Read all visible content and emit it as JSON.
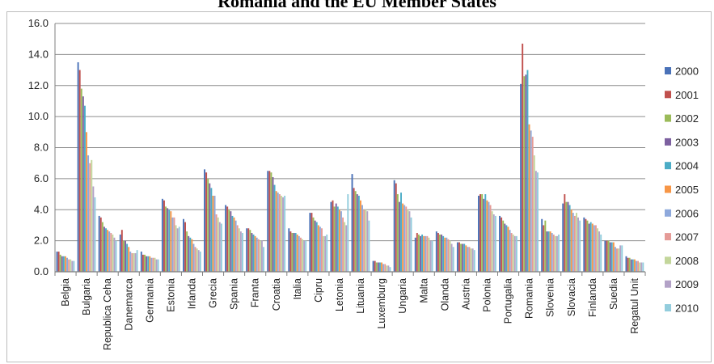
{
  "chart_data": {
    "type": "bar",
    "title": "Romania and the EU Member States",
    "xlabel": "",
    "ylabel": "",
    "ylim": [
      0,
      16
    ],
    "yticks": [
      "0.0",
      "2.0",
      "4.0",
      "6.0",
      "8.0",
      "10.0",
      "12.0",
      "14.0",
      "16.0"
    ],
    "grid": true,
    "legend_position": "right",
    "categories": [
      "Belgia",
      "Bulgaria",
      "Republica Ceha",
      "Danemarca",
      "Germania",
      "Estonia",
      "Irlanda",
      "Grecia",
      "Spania",
      "Franta",
      "Croatia",
      "Italia",
      "Cipru",
      "Letonia",
      "Lituania",
      "Luxemburg",
      "Ungaria",
      "Malta",
      "Olanda",
      "Austria",
      "Polonia",
      "Portugalia",
      "Romania",
      "Slovenia",
      "Slovacia",
      "Finlanda",
      "Suedia",
      "Regatul Unit"
    ],
    "series": [
      {
        "name": "2000",
        "color": "#4a72b8",
        "values": [
          1.3,
          13.5,
          3.6,
          2.4,
          1.3,
          4.7,
          3.4,
          6.6,
          4.3,
          2.8,
          6.5,
          2.8,
          3.8,
          4.5,
          6.3,
          0.7,
          5.9,
          2.2,
          2.6,
          1.9,
          4.9,
          3.6,
          12.1,
          3.4,
          4.4,
          3.5,
          2.0,
          1.0
        ]
      },
      {
        "name": "2001",
        "color": "#c0504d",
        "values": [
          1.3,
          13.0,
          3.5,
          2.7,
          1.1,
          4.6,
          3.2,
          6.4,
          4.2,
          2.8,
          6.5,
          2.6,
          3.8,
          4.6,
          5.4,
          0.7,
          5.7,
          2.5,
          2.5,
          1.9,
          5.0,
          3.5,
          14.7,
          3.0,
          5.0,
          3.4,
          2.0,
          0.9
        ]
      },
      {
        "name": "2002",
        "color": "#9bbb59",
        "values": [
          1.1,
          11.8,
          3.2,
          2.0,
          1.1,
          4.2,
          2.6,
          6.0,
          4.0,
          2.7,
          6.4,
          2.5,
          3.5,
          4.2,
          5.2,
          0.6,
          5.0,
          2.4,
          2.4,
          1.8,
          5.0,
          3.3,
          12.6,
          3.3,
          4.5,
          3.3,
          2.0,
          0.9
        ]
      },
      {
        "name": "2003",
        "color": "#7d60a0",
        "values": [
          1.0,
          11.3,
          2.9,
          2.0,
          1.0,
          4.1,
          2.3,
          5.7,
          3.9,
          2.5,
          6.1,
          2.5,
          3.3,
          4.4,
          5.0,
          0.6,
          4.5,
          2.3,
          2.4,
          1.8,
          4.7,
          3.1,
          12.7,
          2.6,
          4.5,
          3.1,
          1.9,
          0.8
        ]
      },
      {
        "name": "2004",
        "color": "#4bacc6",
        "values": [
          1.0,
          10.7,
          2.8,
          1.8,
          1.0,
          4.0,
          2.2,
          5.4,
          3.6,
          2.4,
          5.6,
          2.5,
          3.2,
          4.2,
          4.9,
          0.6,
          5.1,
          2.4,
          2.3,
          1.8,
          5.0,
          3.0,
          13.0,
          2.6,
          4.3,
          3.2,
          1.9,
          0.8
        ]
      },
      {
        "name": "2005",
        "color": "#f79646",
        "values": [
          1.0,
          9.0,
          2.7,
          1.6,
          1.0,
          3.9,
          2.1,
          4.9,
          3.5,
          2.3,
          5.2,
          2.4,
          3.0,
          4.0,
          4.6,
          0.6,
          4.4,
          2.3,
          2.2,
          1.7,
          4.6,
          2.9,
          9.5,
          2.6,
          4.0,
          3.1,
          1.9,
          0.8
        ]
      },
      {
        "name": "2006",
        "color": "#8ea9dc",
        "values": [
          0.9,
          7.5,
          2.6,
          1.3,
          0.9,
          3.5,
          1.8,
          4.9,
          3.3,
          2.2,
          5.1,
          2.3,
          2.9,
          3.9,
          4.3,
          0.5,
          4.3,
          2.3,
          2.2,
          1.6,
          4.5,
          2.7,
          9.1,
          2.5,
          3.8,
          3.0,
          1.6,
          0.7
        ]
      },
      {
        "name": "2007",
        "color": "#e59b97",
        "values": [
          0.8,
          7.0,
          2.5,
          1.2,
          0.9,
          3.5,
          1.6,
          3.7,
          3.0,
          2.1,
          5.0,
          2.2,
          2.8,
          3.5,
          4.0,
          0.5,
          4.2,
          2.3,
          2.1,
          1.6,
          4.3,
          2.5,
          8.7,
          2.4,
          3.6,
          3.0,
          1.5,
          0.7
        ]
      },
      {
        "name": "2008",
        "color": "#c3d69b",
        "values": [
          0.8,
          7.2,
          2.4,
          1.2,
          0.9,
          3.0,
          1.5,
          3.5,
          2.8,
          2.0,
          4.9,
          2.1,
          2.3,
          3.2,
          4.0,
          0.4,
          4.0,
          2.2,
          2.0,
          1.5,
          3.9,
          2.4,
          7.5,
          2.3,
          3.8,
          2.8,
          1.5,
          0.6
        ]
      },
      {
        "name": "2009",
        "color": "#b3a2c7",
        "values": [
          0.7,
          5.5,
          2.2,
          1.2,
          0.8,
          2.8,
          1.4,
          3.2,
          2.6,
          2.0,
          4.8,
          2.0,
          2.3,
          3.0,
          3.9,
          0.4,
          3.9,
          2.0,
          1.8,
          1.5,
          3.7,
          2.3,
          6.5,
          2.3,
          3.5,
          2.6,
          1.7,
          0.6
        ]
      },
      {
        "name": "2010",
        "color": "#93cddd",
        "values": [
          0.7,
          4.8,
          2.0,
          1.4,
          0.8,
          2.9,
          1.3,
          3.1,
          2.5,
          1.6,
          4.9,
          2.0,
          2.4,
          5.0,
          3.3,
          0.3,
          3.5,
          2.0,
          1.6,
          1.4,
          3.6,
          2.3,
          6.4,
          2.4,
          3.3,
          2.4,
          1.7,
          0.6
        ]
      }
    ]
  }
}
